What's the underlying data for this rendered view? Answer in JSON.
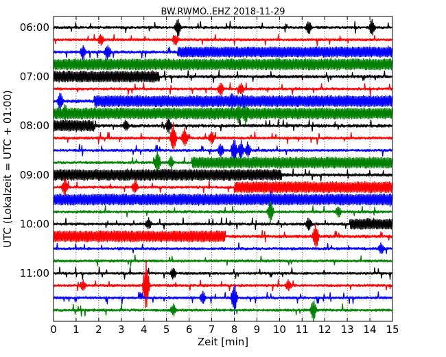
{
  "chart_data": {
    "type": "line",
    "title": "BW.RWMO..EHZ 2018-11-29",
    "xlabel": "Zeit  [min]",
    "ylabel": "UTC (Lokalzeit = UTC + 01:00)",
    "xlim": [
      0,
      15
    ],
    "x_ticks": [
      "0",
      "1",
      "2",
      "3",
      "4",
      "5",
      "6",
      "7",
      "8",
      "9",
      "10",
      "11",
      "12",
      "13",
      "14",
      "15"
    ],
    "y_tick_labels": [
      "06:00",
      "07:00",
      "08:00",
      "09:00",
      "10:00",
      "11:00"
    ],
    "grid": "vertical dotted lines at each minute",
    "traces_per_hour": 4,
    "trace_interval_min": 15,
    "trace_colors": [
      "#000000",
      "#ff0000",
      "#0000ff",
      "#008000"
    ],
    "traces": [
      {
        "time": "06:00",
        "color": "#000000",
        "amp": 0.1,
        "segments": []
      },
      {
        "time": "06:15",
        "color": "#ff0000",
        "amp": 0.1,
        "segments": []
      },
      {
        "time": "06:30",
        "color": "#0000ff",
        "amp": 0.1,
        "segments": [
          [
            5.5,
            15,
            0.42
          ]
        ]
      },
      {
        "time": "06:45",
        "color": "#008000",
        "amp": 0.1,
        "segments": [
          [
            0,
            15,
            0.45
          ]
        ]
      },
      {
        "time": "07:00",
        "color": "#000000",
        "amp": 0.12,
        "segments": [
          [
            0,
            4.7,
            0.45
          ]
        ]
      },
      {
        "time": "07:15",
        "color": "#ff0000",
        "amp": 0.1,
        "segments": []
      },
      {
        "time": "07:30",
        "color": "#0000ff",
        "amp": 0.12,
        "segments": [
          [
            1.8,
            15,
            0.45
          ]
        ]
      },
      {
        "time": "07:45",
        "color": "#008000",
        "amp": 0.12,
        "segments": [
          [
            0,
            15,
            0.45
          ]
        ]
      },
      {
        "time": "08:00",
        "color": "#000000",
        "amp": 0.12,
        "segments": [
          [
            0,
            1.8,
            0.45
          ]
        ]
      },
      {
        "time": "08:15",
        "color": "#ff0000",
        "amp": 0.1,
        "segments": []
      },
      {
        "time": "08:30",
        "color": "#0000ff",
        "amp": 0.1,
        "segments": []
      },
      {
        "time": "08:45",
        "color": "#008000",
        "amp": 0.1,
        "segments": [
          [
            6.1,
            15,
            0.45
          ]
        ]
      },
      {
        "time": "09:00",
        "color": "#000000",
        "amp": 0.12,
        "segments": [
          [
            0,
            10.1,
            0.45
          ]
        ]
      },
      {
        "time": "09:15",
        "color": "#ff0000",
        "amp": 0.1,
        "segments": [
          [
            8.0,
            15,
            0.45
          ]
        ]
      },
      {
        "time": "09:30",
        "color": "#0000ff",
        "amp": 0.12,
        "segments": [
          [
            0,
            15,
            0.45
          ]
        ]
      },
      {
        "time": "09:45",
        "color": "#008000",
        "amp": 0.1,
        "segments": []
      },
      {
        "time": "10:00",
        "color": "#000000",
        "amp": 0.1,
        "segments": [
          [
            13.1,
            15,
            0.42
          ]
        ]
      },
      {
        "time": "10:15",
        "color": "#ff0000",
        "amp": 0.12,
        "segments": [
          [
            0,
            7.6,
            0.45
          ]
        ]
      },
      {
        "time": "10:30",
        "color": "#0000ff",
        "amp": 0.1,
        "segments": []
      },
      {
        "time": "10:45",
        "color": "#008000",
        "amp": 0.1,
        "segments": []
      },
      {
        "time": "11:00",
        "color": "#000000",
        "amp": 0.1,
        "segments": []
      },
      {
        "time": "11:15",
        "color": "#ff0000",
        "amp": 0.1,
        "segments": []
      },
      {
        "time": "11:30",
        "color": "#0000ff",
        "amp": 0.1,
        "segments": []
      },
      {
        "time": "11:45",
        "color": "#008000",
        "amp": 0.1,
        "segments": []
      }
    ],
    "spikes": [
      {
        "trace": 0,
        "x": 5.5,
        "amp": 0.9
      },
      {
        "trace": 0,
        "x": 11.3,
        "amp": 0.7
      },
      {
        "trace": 0,
        "x": 14.1,
        "amp": 0.8
      },
      {
        "trace": 1,
        "x": 2.1,
        "amp": 0.6
      },
      {
        "trace": 1,
        "x": 5.4,
        "amp": 0.6
      },
      {
        "trace": 2,
        "x": 1.3,
        "amp": 0.7
      },
      {
        "trace": 2,
        "x": 2.4,
        "amp": 0.8
      },
      {
        "trace": 5,
        "x": 7.4,
        "amp": 0.7
      },
      {
        "trace": 5,
        "x": 8.3,
        "amp": 0.6
      },
      {
        "trace": 6,
        "x": 0.3,
        "amp": 0.9
      },
      {
        "trace": 6,
        "x": 7.9,
        "amp": 0.9
      },
      {
        "trace": 6,
        "x": 8.4,
        "amp": 0.8
      },
      {
        "trace": 7,
        "x": 0.5,
        "amp": 0.9
      },
      {
        "trace": 7,
        "x": 8.2,
        "amp": 1.0
      },
      {
        "trace": 7,
        "x": 8.5,
        "amp": 1.0
      },
      {
        "trace": 8,
        "x": 3.2,
        "amp": 0.6
      },
      {
        "trace": 8,
        "x": 5.1,
        "amp": 0.7
      },
      {
        "trace": 9,
        "x": 5.3,
        "amp": 1.3
      },
      {
        "trace": 9,
        "x": 5.8,
        "amp": 0.9
      },
      {
        "trace": 9,
        "x": 7.0,
        "amp": 0.7
      },
      {
        "trace": 10,
        "x": 7.4,
        "amp": 0.7
      },
      {
        "trace": 10,
        "x": 8.0,
        "amp": 1.1
      },
      {
        "trace": 10,
        "x": 8.3,
        "amp": 0.9
      },
      {
        "trace": 10,
        "x": 8.6,
        "amp": 0.8
      },
      {
        "trace": 11,
        "x": 4.6,
        "amp": 1.1
      },
      {
        "trace": 11,
        "x": 5.2,
        "amp": 0.6
      },
      {
        "trace": 13,
        "x": 0.5,
        "amp": 0.8
      },
      {
        "trace": 13,
        "x": 3.6,
        "amp": 0.7
      },
      {
        "trace": 14,
        "x": 9.6,
        "amp": 0.9
      },
      {
        "trace": 14,
        "x": 14.9,
        "amp": 0.6
      },
      {
        "trace": 15,
        "x": 9.6,
        "amp": 1.1
      },
      {
        "trace": 15,
        "x": 12.6,
        "amp": 0.6
      },
      {
        "trace": 16,
        "x": 4.2,
        "amp": 0.6
      },
      {
        "trace": 16,
        "x": 11.3,
        "amp": 0.7
      },
      {
        "trace": 17,
        "x": 11.6,
        "amp": 1.2
      },
      {
        "trace": 18,
        "x": 14.5,
        "amp": 0.6
      },
      {
        "trace": 20,
        "x": 5.3,
        "amp": 0.6
      },
      {
        "trace": 21,
        "x": 4.1,
        "amp": 2.5
      },
      {
        "trace": 21,
        "x": 1.3,
        "amp": 0.6
      },
      {
        "trace": 21,
        "x": 10.4,
        "amp": 0.6
      },
      {
        "trace": 22,
        "x": 8.0,
        "amp": 1.4
      },
      {
        "trace": 22,
        "x": 6.6,
        "amp": 0.6
      },
      {
        "trace": 23,
        "x": 11.5,
        "amp": 1.0
      },
      {
        "trace": 23,
        "x": 5.3,
        "amp": 0.6
      }
    ]
  }
}
